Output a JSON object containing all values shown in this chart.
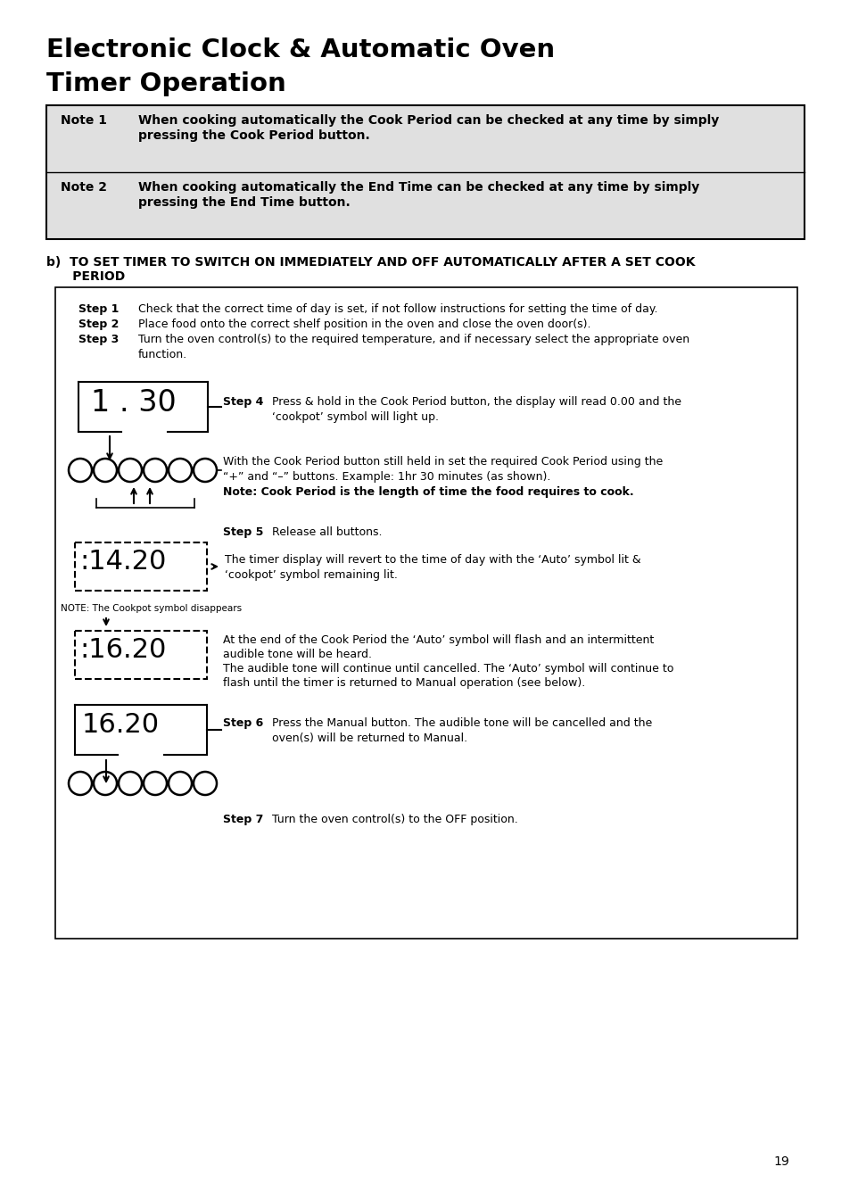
{
  "title_line1": "Electronic Clock & Automatic Oven",
  "title_line2": "Timer Operation",
  "note1_label": "Note 1",
  "note1_text1": "When cooking automatically the Cook Period can be checked at any time by simply",
  "note1_text2": "pressing the Cook Period button.",
  "note2_label": "Note 2",
  "note2_text1": "When cooking automatically the End Time can be checked at any time by simply",
  "note2_text2": "pressing the End Time button.",
  "section_b1": "b)  TO SET TIMER TO SWITCH ON IMMEDIATELY AND OFF AUTOMATICALLY AFTER A SET COOK",
  "section_b2": "      PERIOD",
  "step1_label": "Step 1",
  "step1_text": "Check that the correct time of day is set, if not follow instructions for setting the time of day.",
  "step2_label": "Step 2",
  "step2_text": "Place food onto the correct shelf position in the oven and close the oven door(s).",
  "step3_label": "Step 3",
  "step3_text1": "Turn the oven control(s) to the required temperature, and if necessary select the appropriate oven",
  "step3_text2": "function.",
  "display1": "1.30",
  "step4_label": "Step 4",
  "step4_text1": "Press & hold in the Cook Period button, the display will read 0.00 and the",
  "step4_text2": "‘cookpot’ symbol will light up.",
  "buttons_text1": "With the Cook Period button still held in set the required Cook Period using the",
  "buttons_text2": "“+” and “–” buttons. Example: 1hr 30 minutes (as shown).",
  "note_cook": "Note: Cook Period is the length of time the food requires to cook.",
  "step5_label": "Step 5",
  "step5_text": "Release all buttons.",
  "display2": ":14.20",
  "step5b_text1": "The timer display will revert to the time of day with the ‘Auto’ symbol lit &",
  "step5b_text2": "‘cookpot’ symbol remaining lit.",
  "note_cookpot": "NOTE: The Cookpot symbol disappears",
  "display3": ":16.20",
  "step5c_text1": "At the end of the Cook Period the ‘Auto’ symbol will flash and an intermittent",
  "step5c_text2": "audible tone will be heard.",
  "step5c_text3": "The audible tone will continue until cancelled. The ‘Auto’ symbol will continue to",
  "step5c_text4": "flash until the timer is returned to Manual operation (see below).",
  "display4": "16.20",
  "step6_label": "Step 6",
  "step6_text1": "Press the Manual button. The audible tone will be cancelled and the",
  "step6_text2": "oven(s) will be returned to Manual.",
  "step7_label": "Step 7",
  "step7_text": "Turn the oven control(s) to the OFF position.",
  "page_number": "19",
  "bg_color": "#ffffff",
  "note_bg": "#e0e0e0",
  "border_color": "#000000",
  "text_color": "#000000"
}
